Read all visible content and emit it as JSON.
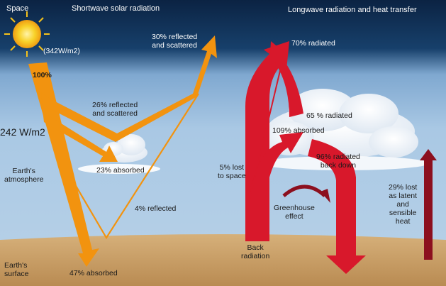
{
  "colors": {
    "space_dark": "#0d2a4d",
    "sky_light": "#a9c8e4",
    "ground": "#c9a06a",
    "shortwave": "#f2930f",
    "longwave": "#d8182b",
    "latent_heat": "#8c0f1e",
    "sun": "#f6c21a"
  },
  "icons": [
    "sun-icon",
    "cloud-icon"
  ],
  "headers": {
    "space": "Space",
    "shortwave": "Shortwave solar radiation",
    "longwave": "Longwave radiation and heat transfer"
  },
  "labels": {
    "solar_input": "(342W/m2)",
    "pct_100": "100%",
    "reflected_30_line1": "30% reflected",
    "reflected_30_line2": "and scattered",
    "reflected_26_line1": "26% reflected",
    "reflected_26_line2": "and scattered",
    "side_value": "242 W/m2",
    "atmosphere_line1": "Earth's",
    "atmosphere_line2": "atmosphere",
    "absorbed_23": "23% absorbed",
    "reflected_4": "4% reflected",
    "surface_line1": "Earth's",
    "surface_line2": "surface",
    "absorbed_47": "47% absorbed",
    "radiated_70": "70% radiated",
    "radiated_65": "65 % radiated",
    "absorbed_109": "109% absorbed",
    "lost_5_line1": "5% lost",
    "lost_5_line2": "to space",
    "radiated_96_line1": "96% radiated",
    "radiated_96_line2": "back down",
    "greenhouse_line1": "Greenhouse",
    "greenhouse_line2": "effect",
    "back_line1": "Back",
    "back_line2": "radiation",
    "lost_29_line1": "29% lost",
    "lost_29_line2": "as latent",
    "lost_29_line3": "and",
    "lost_29_line4": "sensible",
    "lost_29_line5": "heat"
  }
}
